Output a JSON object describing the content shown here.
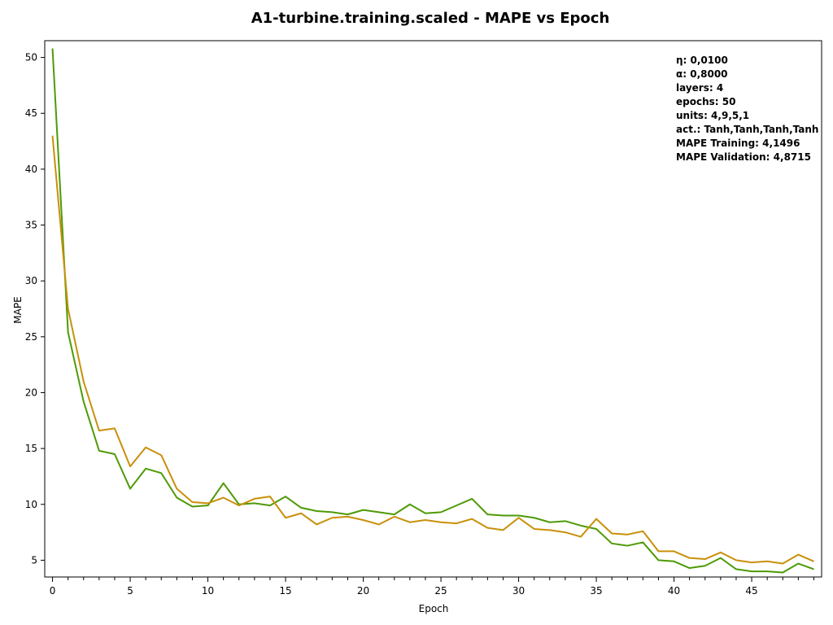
{
  "chart_data": {
    "type": "line",
    "title": "A1-turbine.training.scaled - MAPE vs Epoch",
    "xlabel": "Epoch",
    "ylabel": "MAPE",
    "xlim": [
      -0.5,
      49.5
    ],
    "ylim": [
      3.5,
      51.5
    ],
    "xticks": [
      0,
      5,
      10,
      15,
      20,
      25,
      30,
      35,
      40,
      45
    ],
    "yticks": [
      5,
      10,
      15,
      20,
      25,
      30,
      35,
      40,
      45,
      50
    ],
    "grid": false,
    "annotations": [
      "η: 0,0100",
      "α: 0,8000",
      "layers: 4",
      "epochs: 50",
      "units: 4,9,5,1",
      "act.: Tanh,Tanh,Tanh,Tanh",
      "MAPE Training: 4,1496",
      "MAPE Validation: 4,8715"
    ],
    "x": [
      0,
      1,
      2,
      3,
      4,
      5,
      6,
      7,
      8,
      9,
      10,
      11,
      12,
      13,
      14,
      15,
      16,
      17,
      18,
      19,
      20,
      21,
      22,
      23,
      24,
      25,
      26,
      27,
      28,
      29,
      30,
      31,
      32,
      33,
      34,
      35,
      36,
      37,
      38,
      39,
      40,
      41,
      42,
      43,
      44,
      45,
      46,
      47,
      48,
      49
    ],
    "series": [
      {
        "color": "#4e9a06",
        "values": [
          50.8,
          25.4,
          19.2,
          14.8,
          14.5,
          11.4,
          13.2,
          12.8,
          10.6,
          9.8,
          9.9,
          11.9,
          10.0,
          10.1,
          9.9,
          10.7,
          9.7,
          9.4,
          9.3,
          9.1,
          9.5,
          9.3,
          9.1,
          10.0,
          9.2,
          9.3,
          9.9,
          10.5,
          9.1,
          9.0,
          9.0,
          8.8,
          8.4,
          8.5,
          8.1,
          7.8,
          6.5,
          6.3,
          6.6,
          5.0,
          4.9,
          4.3,
          4.5,
          5.2,
          4.2,
          4.0,
          4.0,
          3.9,
          4.7,
          4.2
        ]
      },
      {
        "color": "#c8900a",
        "values": [
          43.0,
          27.5,
          21.0,
          16.6,
          16.8,
          13.4,
          15.1,
          14.4,
          11.4,
          10.2,
          10.1,
          10.6,
          9.9,
          10.5,
          10.7,
          8.8,
          9.2,
          8.2,
          8.8,
          8.9,
          8.6,
          8.2,
          8.9,
          8.4,
          8.6,
          8.4,
          8.3,
          8.7,
          7.9,
          7.7,
          8.8,
          7.8,
          7.7,
          7.5,
          7.1,
          8.7,
          7.4,
          7.3,
          7.6,
          5.8,
          5.8,
          5.2,
          5.1,
          5.7,
          5.0,
          4.8,
          4.9,
          4.7,
          5.5,
          4.9
        ]
      }
    ]
  }
}
